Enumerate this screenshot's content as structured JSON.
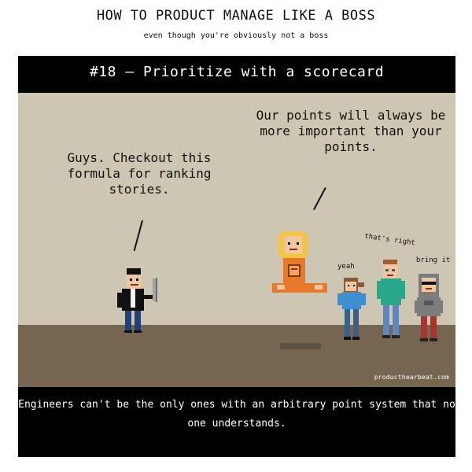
{
  "header": {
    "title": "HOW TO PRODUCT MANAGE LIKE A BOSS",
    "subtitle": "even though you're obviously not a boss"
  },
  "panel": {
    "title": "#18 – Prioritize with a scorecard",
    "speech": {
      "pm": "Guys. Checkout this formula for ranking stories.",
      "guru": "Our points will always be more important than your points.",
      "yeah": "yeah",
      "thats_right": "that's right",
      "bring_it": "bring it"
    },
    "credit": "producthearbeat.com",
    "caption": "Engineers can't be the only ones with an arbitrary point system that no one understands."
  },
  "colors": {
    "panel_background": "#000000",
    "wall": "#cdc6b2",
    "floor": "#76664f",
    "guru_robe": "#e8792b",
    "halo": "#f2c44a",
    "engineer_blue_shirt": "#3d8fd1",
    "engineer_teal_shirt": "#28a78a",
    "engineer_gray_hoodie": "#7c7c7c"
  },
  "characters": [
    {
      "name": "product-manager-figure"
    },
    {
      "name": "meditating-guru-figure"
    },
    {
      "name": "engineer-woman-figure"
    },
    {
      "name": "engineer-tall-figure"
    },
    {
      "name": "engineer-hoodie-figure"
    }
  ]
}
